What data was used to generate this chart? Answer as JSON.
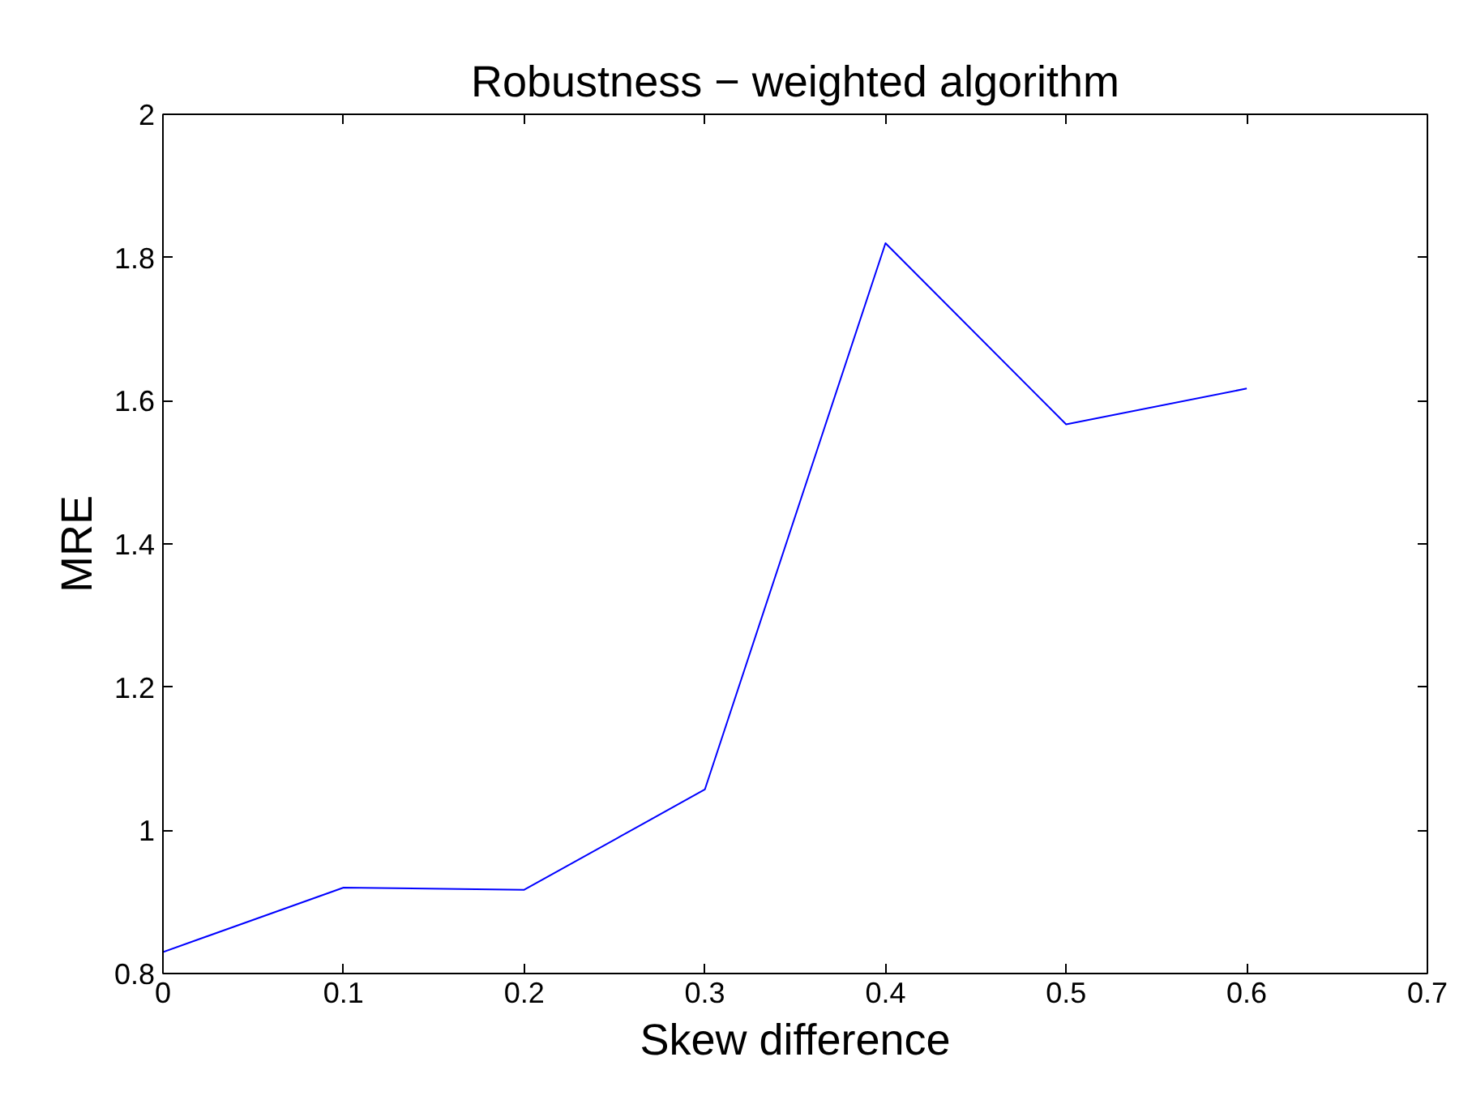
{
  "chart_data": {
    "type": "line",
    "title": "Robustness − weighted algorithm",
    "xlabel": "Skew difference",
    "ylabel": "MRE",
    "x": [
      0,
      0.1,
      0.2,
      0.3,
      0.4,
      0.5,
      0.6
    ],
    "series": [
      {
        "color": "#0000ff",
        "values": [
          0.83,
          0.92,
          0.917,
          1.057,
          1.82,
          1.567,
          1.617
        ]
      }
    ],
    "xlim": [
      0,
      0.7
    ],
    "ylim": [
      0.8,
      2
    ],
    "xticks": [
      0,
      0.1,
      0.2,
      0.3,
      0.4,
      0.5,
      0.6,
      0.7
    ],
    "yticks": [
      0.8,
      1,
      1.2,
      1.4,
      1.6,
      1.8,
      2
    ],
    "grid": false,
    "marker": "none",
    "line_style": "solid"
  }
}
